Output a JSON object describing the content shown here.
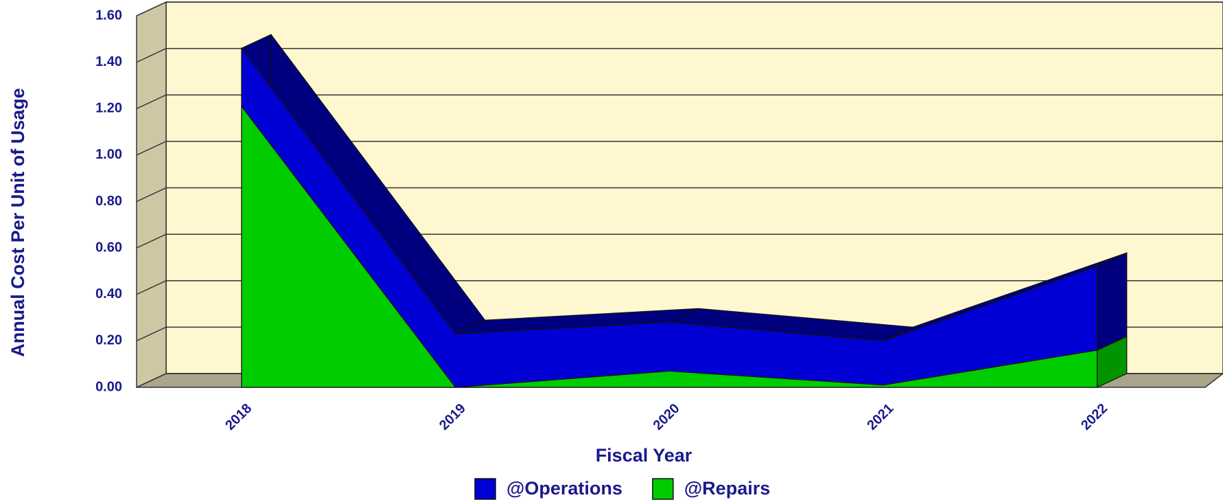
{
  "chart_data": {
    "type": "area3d_stacked",
    "x_label": "Fiscal Year",
    "y_label": "Annual Cost Per Unit of Usage",
    "categories": [
      "2018",
      "2019",
      "2020",
      "2021",
      "2022"
    ],
    "series": [
      {
        "name": "@Repairs",
        "color": "#00cc00",
        "side_color": "#009400",
        "values": [
          1.21,
          0.0,
          0.07,
          0.01,
          0.16
        ]
      },
      {
        "name": "@Operations",
        "color": "#0000d4",
        "side_color": "#00007e",
        "values": [
          0.25,
          0.23,
          0.21,
          0.19,
          0.36
        ]
      }
    ],
    "ylim": [
      0,
      1.6
    ],
    "yticks": [
      {
        "value": 0,
        "label": "0.00"
      },
      {
        "value": 0.2,
        "label": "0.20"
      },
      {
        "value": 0.4,
        "label": "0.40"
      },
      {
        "value": 0.6,
        "label": "0.60"
      },
      {
        "value": 0.8,
        "label": "0.80"
      },
      {
        "value": 1.0,
        "label": "1.00"
      },
      {
        "value": 1.2,
        "label": "1.20"
      },
      {
        "value": 1.4,
        "label": "1.40"
      },
      {
        "value": 1.6,
        "label": "1.60"
      }
    ],
    "legend": "bottom",
    "grid": true
  }
}
